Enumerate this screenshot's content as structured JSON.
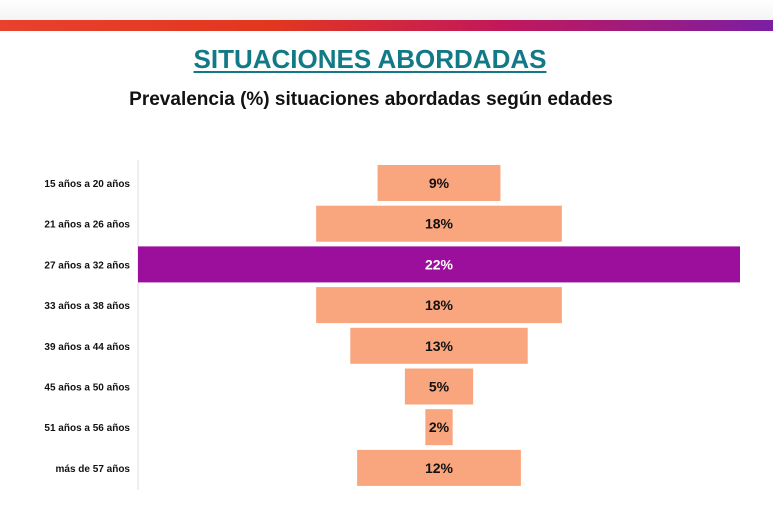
{
  "title": "SITUACIONES ABORDADAS",
  "subtitle": "Prevalencia (%) situaciones abordadas según edades",
  "colors": {
    "bar": "#f9a57e",
    "highlight": "#9b0f9c",
    "title": "#127a87",
    "highlight_text": "#ffffff",
    "text": "#111111"
  },
  "chart_data": {
    "type": "bar",
    "orientation": "horizontal",
    "layout": "centered-funnel",
    "title": "SITUACIONES ABORDADAS",
    "subtitle": "Prevalencia (%) situaciones abordadas según edades",
    "categories": [
      "15 años a 20 años",
      "21 años a 26 años",
      "27 años a 32 años",
      "33 años a 38 años",
      "39 años a 44 años",
      "45 años a 50 años",
      "51 años a 56 años",
      "más de  57 años"
    ],
    "values": [
      9,
      18,
      22,
      18,
      13,
      5,
      2,
      12
    ],
    "value_labels": [
      "9%",
      "18%",
      "22%",
      "18%",
      "13%",
      "5%",
      "2%",
      "12%"
    ],
    "highlighted_category": "27 años a 32 años",
    "grid": false,
    "legend": "none"
  }
}
